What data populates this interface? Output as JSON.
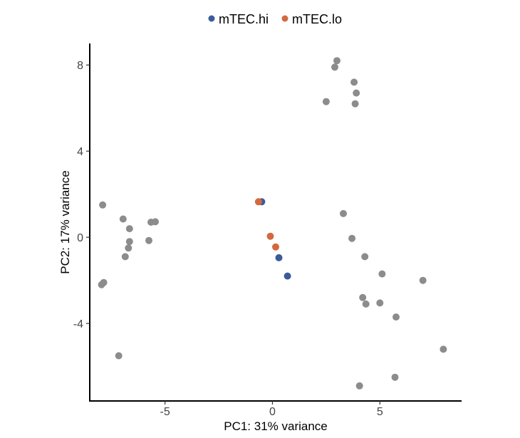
{
  "chart_data": {
    "type": "scatter",
    "title": "",
    "xlabel": "PC1: 31% variance",
    "ylabel": "PC2: 17% variance",
    "xlim": [
      -8.5,
      8.8
    ],
    "ylim": [
      -7.6,
      9.0
    ],
    "x_ticks": [
      -5,
      0,
      5
    ],
    "x_tick_labels": [
      "-5",
      "0",
      "5"
    ],
    "y_ticks": [
      8,
      4,
      0,
      -4
    ],
    "y_tick_labels": [
      "8",
      "4",
      "0",
      "-4"
    ],
    "grid": false,
    "legend": {
      "position": "top",
      "entries": [
        {
          "label": "mTEC.hi",
          "color": "#3B5B9A"
        },
        {
          "label": "mTEC.lo",
          "color": "#D2693E"
        }
      ]
    },
    "series": [
      {
        "color": "#8C8C8C",
        "points": [
          [
            3.0,
            8.2
          ],
          [
            2.9,
            7.9
          ],
          [
            3.8,
            7.2
          ],
          [
            3.9,
            6.7
          ],
          [
            2.5,
            6.3
          ],
          [
            3.85,
            6.2
          ],
          [
            3.3,
            1.1
          ],
          [
            3.7,
            -0.05
          ],
          [
            4.3,
            -0.9
          ],
          [
            5.1,
            -1.7
          ],
          [
            7.0,
            -2.0
          ],
          [
            4.2,
            -2.8
          ],
          [
            4.35,
            -3.1
          ],
          [
            5.0,
            -3.05
          ],
          [
            5.75,
            -3.7
          ],
          [
            7.95,
            -5.2
          ],
          [
            5.7,
            -6.5
          ],
          [
            4.05,
            -6.9
          ],
          [
            -7.9,
            1.5
          ],
          [
            -6.95,
            0.85
          ],
          [
            -5.65,
            0.7
          ],
          [
            -5.45,
            0.72
          ],
          [
            -6.65,
            0.4
          ],
          [
            -6.65,
            -0.2
          ],
          [
            -5.75,
            -0.15
          ],
          [
            -6.7,
            -0.5
          ],
          [
            -6.85,
            -0.9
          ],
          [
            -7.85,
            -2.1
          ],
          [
            -7.95,
            -2.2
          ],
          [
            -7.15,
            -5.5
          ]
        ]
      },
      {
        "name": "mTEC.hi",
        "color": "#3B5B9A",
        "points": [
          [
            -0.5,
            1.65
          ],
          [
            0.3,
            -0.95
          ],
          [
            0.7,
            -1.8
          ]
        ]
      },
      {
        "name": "mTEC.lo",
        "color": "#D2693E",
        "points": [
          [
            -0.65,
            1.65
          ],
          [
            -0.1,
            0.05
          ],
          [
            0.15,
            -0.45
          ]
        ]
      }
    ]
  }
}
